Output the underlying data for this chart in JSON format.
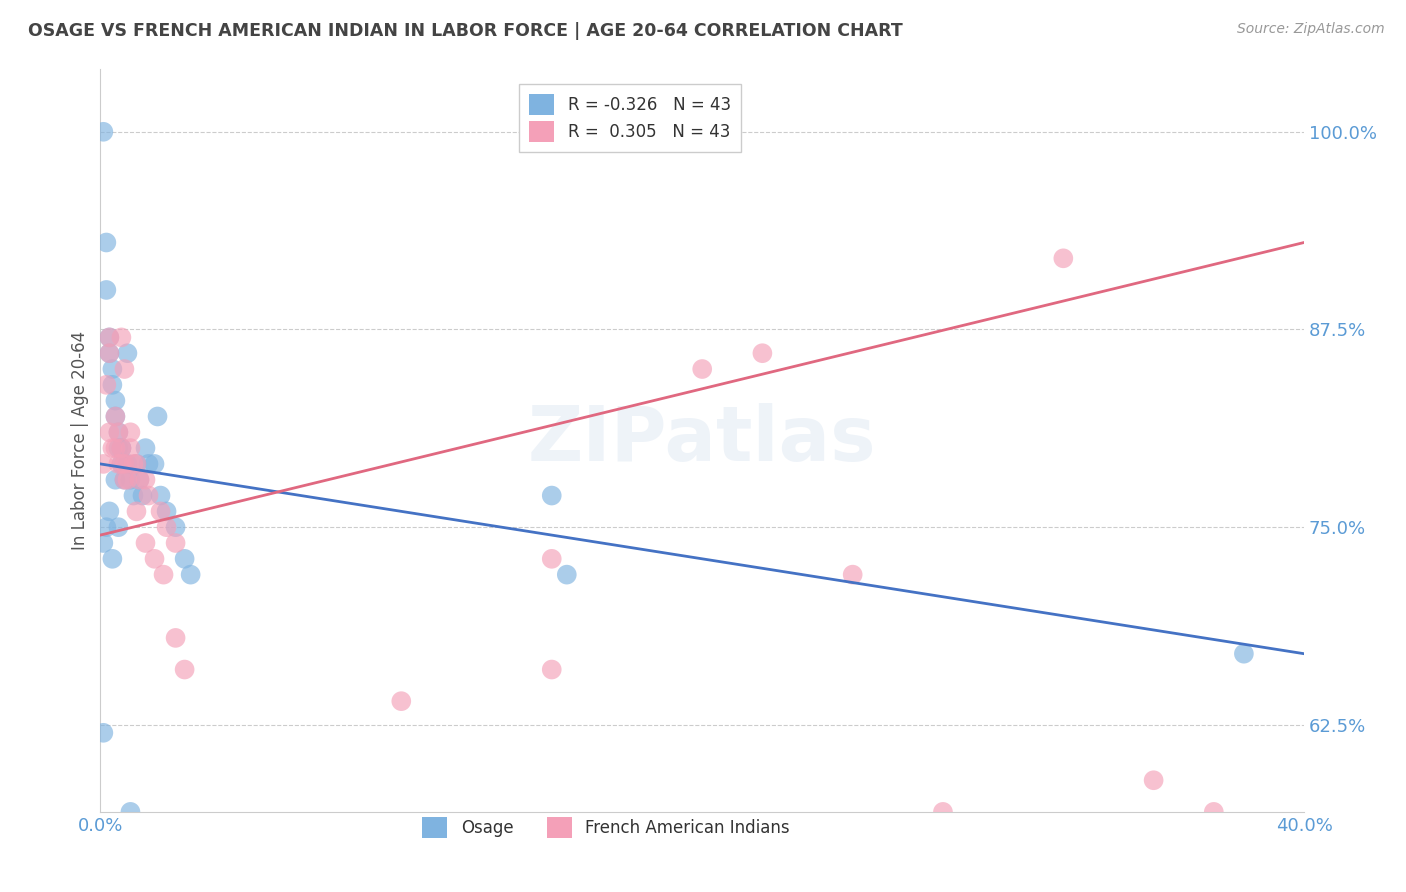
{
  "title": "OSAGE VS FRENCH AMERICAN INDIAN IN LABOR FORCE | AGE 20-64 CORRELATION CHART",
  "source": "Source: ZipAtlas.com",
  "ylabel": "In Labor Force | Age 20-64",
  "xlim": [
    0.0,
    0.4
  ],
  "ylim": [
    0.57,
    1.04
  ],
  "yticks": [
    0.625,
    0.75,
    0.875,
    1.0
  ],
  "ytick_labels": [
    "62.5%",
    "75.0%",
    "87.5%",
    "100.0%"
  ],
  "xticks": [
    0.0,
    0.1,
    0.2,
    0.3,
    0.4
  ],
  "xtick_labels": [
    "0.0%",
    "",
    "",
    "",
    "40.0%"
  ],
  "blue_color": "#7fb3e0",
  "pink_color": "#f4a0b8",
  "blue_line_color": "#4472c4",
  "pink_line_color": "#e06880",
  "legend_blue_R": "-0.326",
  "legend_blue_N": "43",
  "legend_pink_R": "0.305",
  "legend_pink_N": "43",
  "watermark": "ZIPatlas",
  "background_color": "#ffffff",
  "title_color": "#444444",
  "axis_label_color": "#555555",
  "tick_label_color": "#5b9bd5",
  "grid_color": "#cccccc",
  "osage_x": [
    0.001,
    0.002,
    0.002,
    0.003,
    0.003,
    0.004,
    0.004,
    0.005,
    0.005,
    0.006,
    0.006,
    0.007,
    0.007,
    0.008,
    0.008,
    0.009,
    0.01,
    0.011,
    0.012,
    0.013,
    0.014,
    0.015,
    0.016,
    0.018,
    0.02,
    0.022,
    0.025,
    0.028,
    0.03,
    0.15,
    0.155,
    0.019,
    0.009,
    0.007,
    0.005,
    0.003,
    0.002,
    0.001,
    0.001,
    0.006,
    0.004,
    0.01,
    0.38
  ],
  "osage_y": [
    1.0,
    0.93,
    0.9,
    0.87,
    0.86,
    0.85,
    0.84,
    0.83,
    0.82,
    0.81,
    0.8,
    0.8,
    0.79,
    0.79,
    0.78,
    0.79,
    0.78,
    0.77,
    0.79,
    0.78,
    0.77,
    0.8,
    0.79,
    0.79,
    0.77,
    0.76,
    0.75,
    0.73,
    0.72,
    0.77,
    0.72,
    0.82,
    0.86,
    0.8,
    0.78,
    0.76,
    0.75,
    0.74,
    0.62,
    0.75,
    0.73,
    0.57,
    0.67
  ],
  "french_x": [
    0.001,
    0.002,
    0.003,
    0.003,
    0.004,
    0.005,
    0.005,
    0.006,
    0.006,
    0.007,
    0.007,
    0.008,
    0.008,
    0.009,
    0.01,
    0.011,
    0.012,
    0.013,
    0.015,
    0.016,
    0.02,
    0.022,
    0.025,
    0.15,
    0.003,
    0.007,
    0.008,
    0.01,
    0.012,
    0.015,
    0.018,
    0.021,
    0.025,
    0.028,
    0.32,
    0.15,
    0.2,
    0.25,
    0.35,
    0.37,
    0.1,
    0.22,
    0.28
  ],
  "french_y": [
    0.79,
    0.84,
    0.86,
    0.81,
    0.8,
    0.82,
    0.8,
    0.81,
    0.79,
    0.79,
    0.8,
    0.79,
    0.78,
    0.78,
    0.8,
    0.79,
    0.79,
    0.78,
    0.78,
    0.77,
    0.76,
    0.75,
    0.74,
    0.73,
    0.87,
    0.87,
    0.85,
    0.81,
    0.76,
    0.74,
    0.73,
    0.72,
    0.68,
    0.66,
    0.92,
    0.66,
    0.85,
    0.72,
    0.59,
    0.57,
    0.64,
    0.86,
    0.57
  ],
  "blue_line_x": [
    0.0,
    0.4
  ],
  "blue_line_y": [
    0.79,
    0.67
  ],
  "pink_line_x": [
    0.0,
    0.4
  ],
  "pink_line_y": [
    0.745,
    0.93
  ]
}
